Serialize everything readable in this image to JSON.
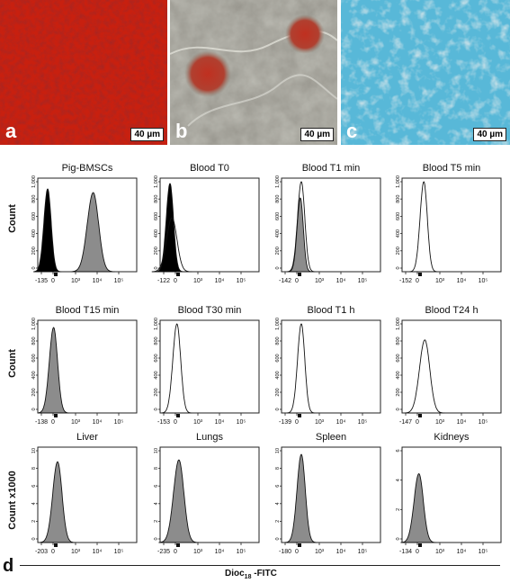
{
  "photos": [
    {
      "label": "a",
      "scale": "40 µm",
      "kind": "red-stain"
    },
    {
      "label": "b",
      "scale": "40 µm",
      "kind": "phase-contrast-red-clusters"
    },
    {
      "label": "c",
      "scale": "40 µm",
      "kind": "blue-stain"
    }
  ],
  "panel_d_label": "d",
  "y_labels": [
    "Count",
    "Count",
    "Count x1000"
  ],
  "x_axis_title_main": "Dioc",
  "x_axis_title_sub": "18",
  "x_axis_title_suffix": " -FITC",
  "tick_labels": [
    "0",
    "10³",
    "10⁴",
    "10⁵"
  ],
  "colors": {
    "red": "#c8200f",
    "blue": "#58b8d8",
    "grey": "#8c8c8c",
    "fill_black": "#000000"
  },
  "chart_data": [
    {
      "type": "area",
      "title": "Pig-BMSCs",
      "xmin": "-135",
      "ylim": [
        0,
        1000
      ],
      "yticks": [
        "1,000",
        "800",
        "600",
        "400",
        "200",
        "0"
      ],
      "peaks": [
        {
          "center": 0.1,
          "width": 0.035,
          "height": 0.92,
          "fill": "black"
        },
        {
          "center": 0.56,
          "width": 0.055,
          "height": 0.88,
          "fill": "grey"
        }
      ]
    },
    {
      "type": "area",
      "title": "Blood T0",
      "xmin": "-122",
      "ylim": [
        0,
        1000
      ],
      "yticks": [
        "1,000",
        "800",
        "600",
        "400",
        "200",
        "0"
      ],
      "peaks": [
        {
          "center": 0.1,
          "width": 0.035,
          "height": 0.98,
          "fill": "black"
        },
        {
          "center": 0.12,
          "width": 0.05,
          "height": 0.6,
          "fill": "outline"
        }
      ]
    },
    {
      "type": "area",
      "title": "Blood T1 min",
      "xmin": "-142",
      "ylim": [
        0,
        1000
      ],
      "yticks": [
        "1,000",
        "800",
        "600",
        "400",
        "200",
        "0"
      ],
      "peaks": [
        {
          "center": 0.2,
          "width": 0.035,
          "height": 1.0,
          "fill": "outline"
        },
        {
          "center": 0.19,
          "width": 0.03,
          "height": 0.82,
          "fill": "grey"
        }
      ]
    },
    {
      "type": "area",
      "title": "Blood T5 min",
      "xmin": "-152",
      "ylim": [
        0,
        1000
      ],
      "yticks": [
        "1,000",
        "800",
        "600",
        "400",
        "200",
        "0"
      ],
      "peaks": [
        {
          "center": 0.22,
          "width": 0.035,
          "height": 1.0,
          "fill": "outline"
        }
      ]
    },
    {
      "type": "area",
      "title": "Blood T15 min",
      "xmin": "-138",
      "ylim": [
        0,
        1000
      ],
      "yticks": [
        "1,000",
        "800",
        "600",
        "400",
        "200",
        "0"
      ],
      "peaks": [
        {
          "center": 0.16,
          "width": 0.04,
          "height": 0.96,
          "fill": "grey"
        }
      ]
    },
    {
      "type": "area",
      "title": "Blood T30 min",
      "xmin": "-153",
      "ylim": [
        0,
        1000
      ],
      "yticks": [
        "1,000",
        "800",
        "600",
        "400",
        "200",
        "0"
      ],
      "peaks": [
        {
          "center": 0.17,
          "width": 0.038,
          "height": 1.0,
          "fill": "outline"
        }
      ]
    },
    {
      "type": "area",
      "title": "Blood T1 h",
      "xmin": "-139",
      "ylim": [
        0,
        1000
      ],
      "yticks": [
        "1,000",
        "800",
        "600",
        "400",
        "200",
        "0"
      ],
      "peaks": [
        {
          "center": 0.2,
          "width": 0.035,
          "height": 1.0,
          "fill": "outline"
        }
      ]
    },
    {
      "type": "area",
      "title": "Blood T24 h",
      "xmin": "-147",
      "ylim": [
        0,
        1000
      ],
      "yticks": [
        "1,000",
        "800",
        "600",
        "400",
        "200",
        "0"
      ],
      "peaks": [
        {
          "center": 0.23,
          "width": 0.05,
          "height": 0.82,
          "fill": "outline"
        }
      ]
    },
    {
      "type": "area",
      "title": "Liver",
      "xmin": "-203",
      "ylim": [
        0,
        10
      ],
      "yticks": [
        "10",
        "8",
        "6",
        "4",
        "2",
        "0"
      ],
      "peaks": [
        {
          "center": 0.2,
          "width": 0.045,
          "height": 0.88,
          "fill": "grey"
        }
      ]
    },
    {
      "type": "area",
      "title": "Lungs",
      "xmin": "-235",
      "ylim": [
        0,
        10
      ],
      "yticks": [
        "10",
        "8",
        "6",
        "4",
        "2",
        "0"
      ],
      "peaks": [
        {
          "center": 0.19,
          "width": 0.05,
          "height": 0.9,
          "fill": "grey"
        }
      ]
    },
    {
      "type": "area",
      "title": "Spleen",
      "xmin": "-180",
      "ylim": [
        0,
        10
      ],
      "yticks": [
        "10",
        "8",
        "6",
        "4",
        "2",
        "0"
      ],
      "peaks": [
        {
          "center": 0.2,
          "width": 0.04,
          "height": 0.96,
          "fill": "grey"
        }
      ]
    },
    {
      "type": "area",
      "title": "Kidneys",
      "xmin": "-134",
      "ylim": [
        0,
        8
      ],
      "yticks": [
        "6",
        "4",
        "2",
        "0"
      ],
      "peaks": [
        {
          "center": 0.17,
          "width": 0.045,
          "height": 0.75,
          "fill": "grey"
        }
      ]
    }
  ]
}
